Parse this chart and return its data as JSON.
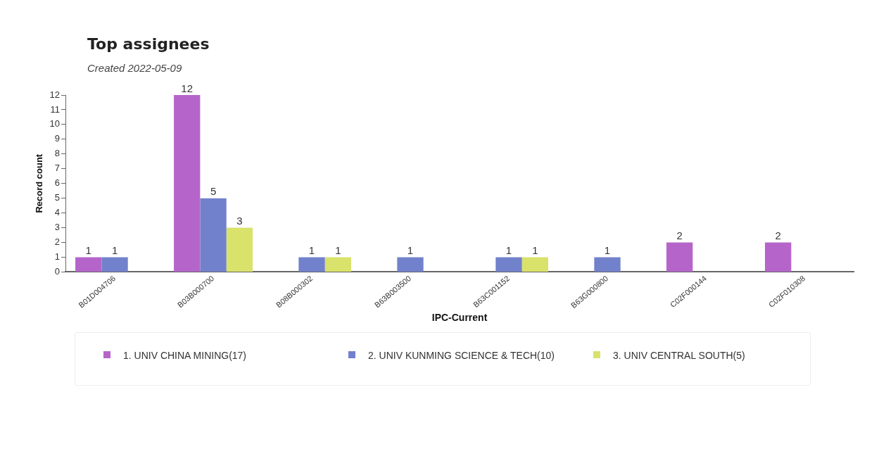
{
  "chart_data": {
    "type": "bar",
    "title": "Top assignees",
    "subtitle": "Created 2022-05-09",
    "xlabel": "IPC-Current",
    "ylabel": "Record count",
    "categories": [
      "B01D004706",
      "B03B000700",
      "B08B000302",
      "B63B003500",
      "B63C001152",
      "B63G000800",
      "C02F000144",
      "C02F010308"
    ],
    "series": [
      {
        "name": "1. UNIV CHINA MINING(17)",
        "color": "#b565c9",
        "values": [
          1,
          12,
          null,
          null,
          null,
          null,
          2,
          2
        ]
      },
      {
        "name": "2. UNIV KUNMING SCIENCE & TECH(10)",
        "color": "#7281cc",
        "values": [
          1,
          5,
          1,
          1,
          1,
          1,
          null,
          null
        ]
      },
      {
        "name": "3. UNIV CENTRAL SOUTH(5)",
        "color": "#d9e26a",
        "values": [
          null,
          3,
          1,
          null,
          1,
          null,
          null,
          null
        ]
      }
    ],
    "ylim": [
      0,
      12
    ],
    "yticks": [
      0,
      1,
      2,
      3,
      4,
      5,
      6,
      7,
      8,
      9,
      10,
      11,
      12
    ],
    "grid": false,
    "legend": "bottom",
    "data_labels": true
  }
}
